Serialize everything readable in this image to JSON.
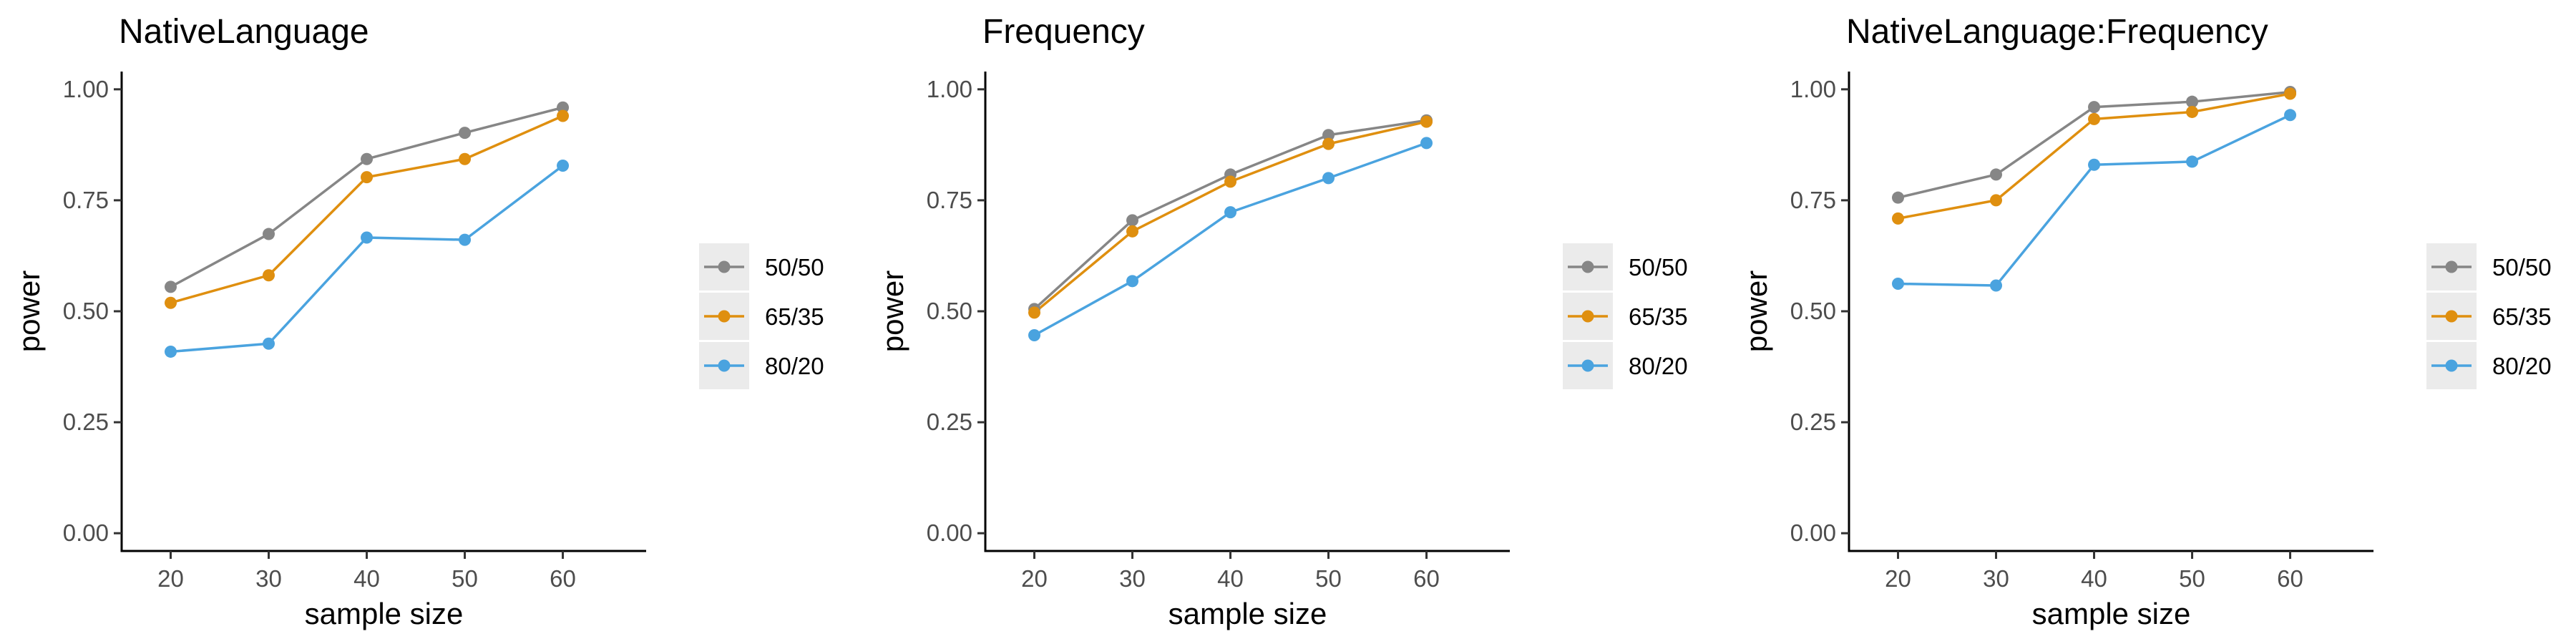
{
  "colors": {
    "50/50": "#868686",
    "65/35": "#df8f0f",
    "80/20": "#4aa3df",
    "legend_key_bg": "#ebebeb",
    "axis": "#000000"
  },
  "chart_data": [
    {
      "type": "line",
      "title": "NativeLanguage",
      "xlabel": "sample size",
      "ylabel": "power",
      "x": [
        20,
        30,
        40,
        50,
        60
      ],
      "x_ticks": [
        "20",
        "30",
        "40",
        "50",
        "60"
      ],
      "y_ticks": [
        "0.00",
        "0.25",
        "0.50",
        "0.75",
        "1.00"
      ],
      "xlim": [
        15,
        68.5
      ],
      "ylim": [
        -0.04,
        1.04
      ],
      "grid": false,
      "legend_position": "right",
      "series": [
        {
          "name": "50/50",
          "values": [
            0.555,
            0.674,
            0.843,
            0.902,
            0.959
          ]
        },
        {
          "name": "65/35",
          "values": [
            0.519,
            0.581,
            0.802,
            0.843,
            0.94
          ]
        },
        {
          "name": "80/20",
          "values": [
            0.409,
            0.427,
            0.666,
            0.661,
            0.828
          ]
        }
      ]
    },
    {
      "type": "line",
      "title": "Frequency",
      "xlabel": "sample size",
      "ylabel": "power",
      "x": [
        20,
        30,
        40,
        50,
        60
      ],
      "x_ticks": [
        "20",
        "30",
        "40",
        "50",
        "60"
      ],
      "y_ticks": [
        "0.00",
        "0.25",
        "0.50",
        "0.75",
        "1.00"
      ],
      "xlim": [
        15,
        68.5
      ],
      "ylim": [
        -0.04,
        1.04
      ],
      "grid": false,
      "legend_position": "right",
      "series": [
        {
          "name": "50/50",
          "values": [
            0.505,
            0.705,
            0.808,
            0.897,
            0.93
          ]
        },
        {
          "name": "65/35",
          "values": [
            0.497,
            0.68,
            0.792,
            0.877,
            0.927
          ]
        },
        {
          "name": "80/20",
          "values": [
            0.446,
            0.568,
            0.723,
            0.8,
            0.879
          ]
        }
      ]
    },
    {
      "type": "line",
      "title": "NativeLanguage:Frequency",
      "xlabel": "sample size",
      "ylabel": "power",
      "x": [
        20,
        30,
        40,
        50,
        60
      ],
      "x_ticks": [
        "20",
        "30",
        "40",
        "50",
        "60"
      ],
      "y_ticks": [
        "0.00",
        "0.25",
        "0.50",
        "0.75",
        "1.00"
      ],
      "xlim": [
        15,
        68.5
      ],
      "ylim": [
        -0.04,
        1.04
      ],
      "grid": false,
      "legend_position": "right",
      "series": [
        {
          "name": "50/50",
          "values": [
            0.756,
            0.808,
            0.96,
            0.972,
            0.994
          ]
        },
        {
          "name": "65/35",
          "values": [
            0.709,
            0.75,
            0.933,
            0.949,
            0.99
          ]
        },
        {
          "name": "80/20",
          "values": [
            0.562,
            0.558,
            0.83,
            0.837,
            0.942
          ]
        }
      ]
    }
  ]
}
